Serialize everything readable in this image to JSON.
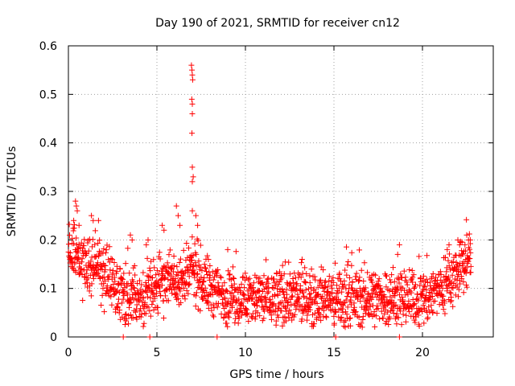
{
  "chart_data": {
    "type": "scatter",
    "title": "Day 190 of 2021, SRMTID for receiver cn12",
    "xlabel": "GPS time / hours",
    "ylabel": "SRMTID / TECUs",
    "xlim": [
      0,
      24
    ],
    "ylim": [
      0,
      0.6
    ],
    "xticks": [
      0,
      5,
      10,
      15,
      20
    ],
    "yticks": [
      0,
      0.1,
      0.2,
      0.3,
      0.4,
      0.5,
      0.6
    ],
    "xtick_labels": [
      "0",
      "5",
      "10",
      "15",
      "20"
    ],
    "ytick_labels": [
      "0",
      "0.1",
      "0.2",
      "0.3",
      "0.4",
      "0.5",
      "0.6"
    ],
    "grid": true,
    "marker": "+",
    "color": "#ff0000",
    "baseline_level_by_hour": [
      [
        0,
        0.17
      ],
      [
        0.5,
        0.17
      ],
      [
        1,
        0.14
      ],
      [
        1.5,
        0.16
      ],
      [
        2,
        0.13
      ],
      [
        2.5,
        0.11
      ],
      [
        3,
        0.09
      ],
      [
        3.5,
        0.08
      ],
      [
        4,
        0.08
      ],
      [
        4.5,
        0.09
      ],
      [
        5,
        0.11
      ],
      [
        5.5,
        0.12
      ],
      [
        6,
        0.12
      ],
      [
        6.5,
        0.11
      ],
      [
        7,
        0.14
      ],
      [
        7.5,
        0.12
      ],
      [
        8,
        0.1
      ],
      [
        8.5,
        0.09
      ],
      [
        9,
        0.08
      ],
      [
        10,
        0.08
      ],
      [
        11,
        0.08
      ],
      [
        12,
        0.08
      ],
      [
        13,
        0.08
      ],
      [
        14,
        0.08
      ],
      [
        15,
        0.08
      ],
      [
        16,
        0.08
      ],
      [
        17,
        0.08
      ],
      [
        18,
        0.08
      ],
      [
        19,
        0.08
      ],
      [
        20,
        0.08
      ],
      [
        21,
        0.1
      ],
      [
        21.5,
        0.12
      ],
      [
        22,
        0.13
      ],
      [
        22.7,
        0.16
      ]
    ],
    "outlier_points": [
      [
        0.4,
        0.28
      ],
      [
        0.45,
        0.27
      ],
      [
        0.5,
        0.26
      ],
      [
        0.3,
        0.24
      ],
      [
        0.6,
        0.23
      ],
      [
        1.3,
        0.25
      ],
      [
        1.4,
        0.24
      ],
      [
        1.7,
        0.24
      ],
      [
        3.5,
        0.21
      ],
      [
        3.6,
        0.2
      ],
      [
        4.4,
        0.19
      ],
      [
        4.5,
        0.2
      ],
      [
        5.3,
        0.23
      ],
      [
        5.4,
        0.22
      ],
      [
        6.1,
        0.27
      ],
      [
        6.2,
        0.25
      ],
      [
        6.3,
        0.23
      ],
      [
        6.95,
        0.56
      ],
      [
        6.98,
        0.55
      ],
      [
        7.0,
        0.54
      ],
      [
        7.02,
        0.53
      ],
      [
        6.97,
        0.49
      ],
      [
        7.0,
        0.48
      ],
      [
        7.0,
        0.46
      ],
      [
        6.98,
        0.42
      ],
      [
        7.0,
        0.35
      ],
      [
        7.05,
        0.33
      ],
      [
        7.0,
        0.32
      ],
      [
        7.0,
        0.26
      ],
      [
        7.2,
        0.25
      ],
      [
        7.3,
        0.23
      ],
      [
        9.0,
        0.18
      ],
      [
        13.2,
        0.16
      ],
      [
        18.6,
        0.17
      ],
      [
        18.7,
        0.19
      ],
      [
        21.4,
        0.18
      ],
      [
        21.5,
        0.19
      ],
      [
        22.0,
        0.2
      ],
      [
        22.1,
        0.19
      ],
      [
        22.5,
        0.21
      ],
      [
        22.6,
        0.2
      ],
      [
        22.7,
        0.2
      ],
      [
        22.4,
        0.19
      ]
    ],
    "zero_points": [
      [
        3.1,
        0
      ],
      [
        4.6,
        0
      ],
      [
        8.4,
        0
      ],
      [
        15.1,
        0
      ],
      [
        18.7,
        0
      ]
    ]
  }
}
